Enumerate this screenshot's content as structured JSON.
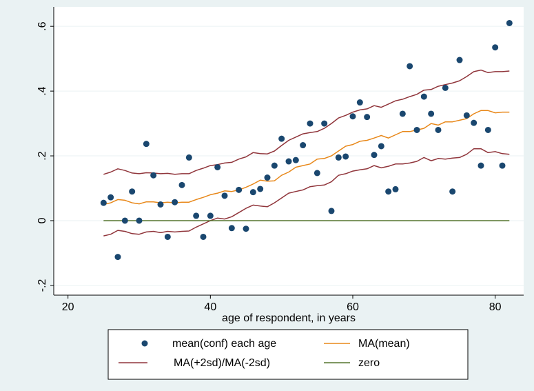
{
  "colors": {
    "background": "#eaf2f3",
    "plot_background": "#ffffff",
    "points": "#1a476f",
    "ma_mean": "#e8881a",
    "ma_sd": "#90353b",
    "zero": "#55752f"
  },
  "chart_data": {
    "type": "scatter",
    "title": "",
    "xlabel": "age of respondent, in years",
    "ylabel": "",
    "xlim": [
      18,
      84
    ],
    "ylim": [
      -0.23,
      0.66
    ],
    "xticks": [
      20,
      40,
      60,
      80
    ],
    "xtick_labels": [
      "20",
      "40",
      "60",
      "80"
    ],
    "yticks": [
      -0.2,
      0,
      0.2,
      0.4,
      0.6
    ],
    "ytick_labels": [
      "-.2",
      "0",
      ".2",
      ".4",
      ".6"
    ],
    "grid": "horizontal",
    "legend_placement": "bottom",
    "legend": [
      {
        "label": "mean(conf) each age",
        "kind": "marker",
        "color": "#1a476f"
      },
      {
        "label": "MA(mean)",
        "kind": "line",
        "color": "#e8881a"
      },
      {
        "label": "MA(+2sd)/MA(-2sd)",
        "kind": "line",
        "color": "#90353b"
      },
      {
        "label": "zero",
        "kind": "line",
        "color": "#55752f"
      }
    ],
    "series": [
      {
        "name": "mean(conf) each age",
        "kind": "scatter",
        "color": "#1a476f",
        "x": [
          25,
          26,
          27,
          28,
          29,
          30,
          31,
          32,
          33,
          34,
          35,
          36,
          37,
          38,
          39,
          40,
          41,
          42,
          43,
          44,
          45,
          46,
          47,
          48,
          49,
          50,
          51,
          52,
          53,
          54,
          55,
          56,
          57,
          58,
          59,
          60,
          61,
          62,
          63,
          64,
          65,
          66,
          67,
          68,
          69,
          70,
          71,
          72,
          73,
          74,
          75,
          76,
          77,
          78,
          79,
          80,
          81,
          82
        ],
        "y": [
          0.055,
          0.072,
          -0.112,
          0.0,
          0.09,
          0.0,
          0.237,
          0.14,
          0.05,
          -0.05,
          0.057,
          0.11,
          0.195,
          0.015,
          -0.05,
          0.015,
          0.165,
          0.077,
          -0.023,
          0.095,
          -0.025,
          0.088,
          0.098,
          0.133,
          0.17,
          0.253,
          0.183,
          0.187,
          0.233,
          0.3,
          0.147,
          0.3,
          0.03,
          0.195,
          0.198,
          0.322,
          0.365,
          0.32,
          0.203,
          0.23,
          0.09,
          0.097,
          0.33,
          0.477,
          0.28,
          0.383,
          0.33,
          0.28,
          0.41,
          0.09,
          0.496,
          0.325,
          0.302,
          0.17,
          0.28,
          0.535,
          0.17,
          0.61
        ]
      },
      {
        "name": "MA(mean)",
        "kind": "line",
        "color": "#e8881a",
        "x": [
          25,
          26,
          27,
          28,
          29,
          30,
          31,
          32,
          33,
          34,
          35,
          36,
          37,
          38,
          39,
          40,
          41,
          42,
          43,
          44,
          45,
          46,
          47,
          48,
          49,
          50,
          51,
          52,
          53,
          54,
          55,
          56,
          57,
          58,
          59,
          60,
          61,
          62,
          63,
          64,
          65,
          66,
          67,
          68,
          69,
          70,
          71,
          72,
          73,
          74,
          75,
          76,
          77,
          78,
          79,
          80,
          81,
          82
        ],
        "y": [
          0.05,
          0.055,
          0.065,
          0.063,
          0.055,
          0.052,
          0.058,
          0.058,
          0.055,
          0.057,
          0.055,
          0.057,
          0.057,
          0.065,
          0.072,
          0.08,
          0.085,
          0.092,
          0.09,
          0.095,
          0.103,
          0.113,
          0.125,
          0.122,
          0.123,
          0.14,
          0.15,
          0.165,
          0.17,
          0.175,
          0.19,
          0.192,
          0.2,
          0.215,
          0.23,
          0.235,
          0.245,
          0.248,
          0.255,
          0.263,
          0.255,
          0.265,
          0.275,
          0.275,
          0.28,
          0.285,
          0.3,
          0.295,
          0.305,
          0.305,
          0.31,
          0.315,
          0.33,
          0.34,
          0.34,
          0.333,
          0.335,
          0.335
        ]
      },
      {
        "name": "MA(+2sd)",
        "kind": "line",
        "color": "#90353b",
        "x": [
          25,
          26,
          27,
          28,
          29,
          30,
          31,
          32,
          33,
          34,
          35,
          36,
          37,
          38,
          39,
          40,
          41,
          42,
          43,
          44,
          45,
          46,
          47,
          48,
          49,
          50,
          51,
          52,
          53,
          54,
          55,
          56,
          57,
          58,
          59,
          60,
          61,
          62,
          63,
          64,
          65,
          66,
          67,
          68,
          69,
          70,
          71,
          72,
          73,
          74,
          75,
          76,
          77,
          78,
          79,
          80,
          81,
          82
        ],
        "y": [
          0.143,
          0.15,
          0.16,
          0.155,
          0.147,
          0.145,
          0.148,
          0.147,
          0.145,
          0.146,
          0.143,
          0.145,
          0.145,
          0.155,
          0.162,
          0.17,
          0.173,
          0.178,
          0.18,
          0.19,
          0.197,
          0.21,
          0.207,
          0.206,
          0.215,
          0.232,
          0.248,
          0.258,
          0.268,
          0.272,
          0.275,
          0.285,
          0.3,
          0.317,
          0.325,
          0.335,
          0.342,
          0.345,
          0.355,
          0.35,
          0.36,
          0.37,
          0.375,
          0.383,
          0.39,
          0.403,
          0.405,
          0.415,
          0.42,
          0.425,
          0.432,
          0.445,
          0.46,
          0.465,
          0.457,
          0.46,
          0.46,
          0.462
        ]
      },
      {
        "name": "MA(-2sd)",
        "kind": "line",
        "color": "#90353b",
        "x": [
          25,
          26,
          27,
          28,
          29,
          30,
          31,
          32,
          33,
          34,
          35,
          36,
          37,
          38,
          39,
          40,
          41,
          42,
          43,
          44,
          45,
          46,
          47,
          48,
          49,
          50,
          51,
          52,
          53,
          54,
          55,
          56,
          57,
          58,
          59,
          60,
          61,
          62,
          63,
          64,
          65,
          66,
          67,
          68,
          69,
          70,
          71,
          72,
          73,
          74,
          75,
          76,
          77,
          78,
          79,
          80,
          81,
          82
        ],
        "y": [
          -0.047,
          -0.042,
          -0.03,
          -0.033,
          -0.04,
          -0.042,
          -0.035,
          -0.033,
          -0.037,
          -0.033,
          -0.035,
          -0.033,
          -0.032,
          -0.02,
          -0.01,
          0.0,
          0.008,
          0.005,
          0.012,
          0.025,
          0.038,
          0.048,
          0.045,
          0.043,
          0.055,
          0.07,
          0.085,
          0.09,
          0.095,
          0.105,
          0.108,
          0.11,
          0.12,
          0.14,
          0.145,
          0.153,
          0.157,
          0.16,
          0.17,
          0.163,
          0.168,
          0.175,
          0.175,
          0.178,
          0.183,
          0.195,
          0.185,
          0.192,
          0.19,
          0.193,
          0.195,
          0.205,
          0.222,
          0.222,
          0.21,
          0.213,
          0.207,
          0.205
        ]
      },
      {
        "name": "zero",
        "kind": "line",
        "color": "#55752f",
        "x": [
          25,
          82
        ],
        "y": [
          0,
          0
        ]
      }
    ]
  }
}
